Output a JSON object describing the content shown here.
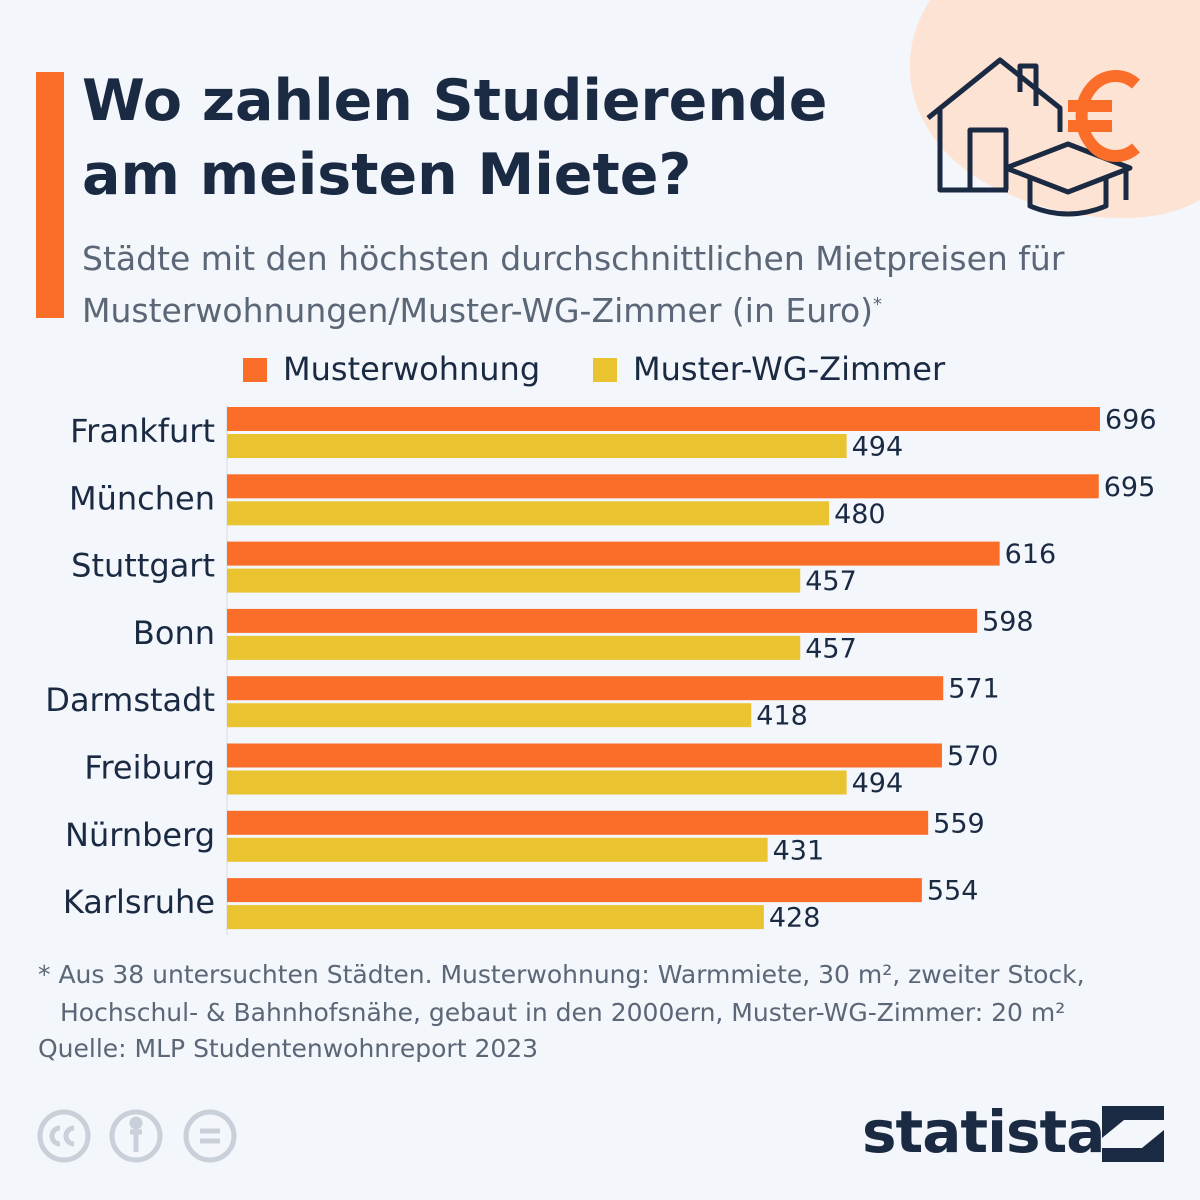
{
  "header": {
    "title": "Wo zahlen Studierende am meisten Miete?",
    "subtitle": "Städte mit den höchsten durchschnittlichen Mietpreisen für Musterwohnungen/Muster-WG-Zimmer (in Euro)",
    "subtitle_marker": "*"
  },
  "chart_data": {
    "type": "hbar",
    "categories": [
      "Frankfurt",
      "München",
      "Stuttgart",
      "Bonn",
      "Darmstadt",
      "Freiburg",
      "Nürnberg",
      "Karlsruhe"
    ],
    "series": [
      {
        "name": "Musterwohnung",
        "color": "#fa6e2a",
        "values": [
          696,
          695,
          616,
          598,
          571,
          570,
          559,
          554
        ]
      },
      {
        "name": "Muster-WG-Zimmer",
        "color": "#eac331",
        "values": [
          494,
          480,
          457,
          457,
          418,
          494,
          431,
          428
        ]
      }
    ]
  },
  "footer": {
    "note": "* Aus 38 untersuchten Städten. Musterwohnung: Warmmiete, 30 m², zweiter Stock, Hochschul- & Bahnhofsnähe, gebaut in den 2000ern, Muster-WG-Zimmer: 20 m²",
    "source": "Quelle: MLP Studentenwohnreport 2023",
    "brand": "statista"
  }
}
